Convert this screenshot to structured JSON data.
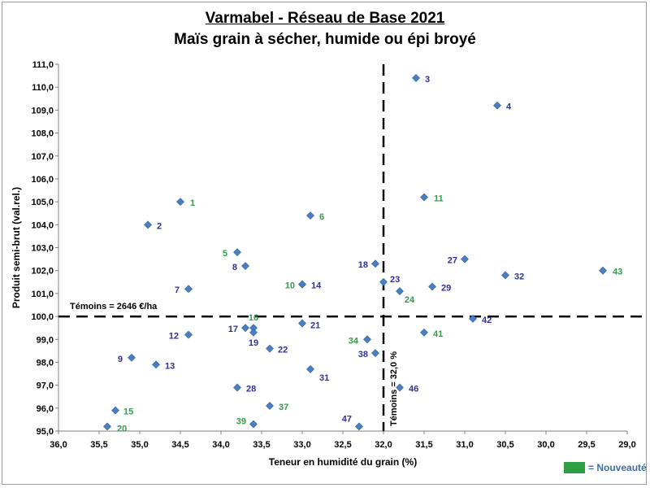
{
  "titles": {
    "line1": "Varmabel - Réseau de Base 2021",
    "line2": "Maïs grain à sécher, humide ou épi broyé"
  },
  "legend": {
    "label": "= Nouveauté",
    "color": "#2e9e45"
  },
  "colors": {
    "marker": "#4a7fc1",
    "label_standard": "#2e3192",
    "label_new": "#2e9e45",
    "refline": "#000000"
  },
  "chart_data": {
    "type": "scatter",
    "xlabel": "Teneur en humidité du grain (%)",
    "ylabel": "Produit semi-brut (val.rel.)",
    "xlim": [
      36.0,
      29.0
    ],
    "x_reversed": true,
    "ylim": [
      95.0,
      111.0
    ],
    "x_ticks": [
      "36,0",
      "35,5",
      "35,0",
      "34,5",
      "34,0",
      "33,5",
      "33,0",
      "32,5",
      "32,0",
      "31,5",
      "31,0",
      "30,5",
      "30,0",
      "29,5",
      "29,0"
    ],
    "y_ticks": [
      "95,0",
      "96,0",
      "97,0",
      "98,0",
      "99,0",
      "100,0",
      "101,0",
      "102,0",
      "103,0",
      "104,0",
      "105,0",
      "106,0",
      "107,0",
      "108,0",
      "109,0",
      "110,0",
      "111,0"
    ],
    "grid": false,
    "reference_lines": {
      "horizontal": {
        "y": 100.0,
        "label": "Témoins = 2646 €/ha"
      },
      "vertical": {
        "x": 32.0,
        "label": "Témoins = 32,0 %"
      }
    },
    "points": [
      {
        "id": "1",
        "x": 34.5,
        "y": 105.0,
        "new": true
      },
      {
        "id": "2",
        "x": 34.9,
        "y": 104.0,
        "new": false
      },
      {
        "id": "3",
        "x": 31.6,
        "y": 110.4,
        "new": false
      },
      {
        "id": "4",
        "x": 30.6,
        "y": 109.2,
        "new": false
      },
      {
        "id": "5",
        "x": 33.8,
        "y": 102.8,
        "new": true
      },
      {
        "id": "6",
        "x": 32.9,
        "y": 104.4,
        "new": true
      },
      {
        "id": "7",
        "x": 34.4,
        "y": 101.2,
        "new": false
      },
      {
        "id": "8",
        "x": 33.7,
        "y": 102.2,
        "new": false
      },
      {
        "id": "9",
        "x": 35.1,
        "y": 98.2,
        "new": false
      },
      {
        "id": "10",
        "x": 33.0,
        "y": 101.4,
        "new": true
      },
      {
        "id": "11",
        "x": 31.5,
        "y": 105.2,
        "new": true
      },
      {
        "id": "12",
        "x": 34.4,
        "y": 99.2,
        "new": false
      },
      {
        "id": "13",
        "x": 34.8,
        "y": 97.9,
        "new": false
      },
      {
        "id": "14",
        "x": 33.0,
        "y": 101.4,
        "new": false
      },
      {
        "id": "15",
        "x": 35.3,
        "y": 95.9,
        "new": true
      },
      {
        "id": "16",
        "x": 33.6,
        "y": 99.5,
        "new": true
      },
      {
        "id": "17",
        "x": 33.7,
        "y": 99.5,
        "new": false
      },
      {
        "id": "18",
        "x": 32.1,
        "y": 102.3,
        "new": false
      },
      {
        "id": "19",
        "x": 33.6,
        "y": 99.3,
        "new": false
      },
      {
        "id": "20",
        "x": 35.4,
        "y": 95.2,
        "new": true
      },
      {
        "id": "21",
        "x": 33.0,
        "y": 99.7,
        "new": false
      },
      {
        "id": "22",
        "x": 33.4,
        "y": 98.6,
        "new": false
      },
      {
        "id": "23",
        "x": 32.0,
        "y": 101.5,
        "new": false
      },
      {
        "id": "24",
        "x": 31.8,
        "y": 101.1,
        "new": true
      },
      {
        "id": "27",
        "x": 31.0,
        "y": 102.5,
        "new": false
      },
      {
        "id": "28",
        "x": 33.8,
        "y": 96.9,
        "new": false
      },
      {
        "id": "29",
        "x": 31.4,
        "y": 101.3,
        "new": false
      },
      {
        "id": "31",
        "x": 32.9,
        "y": 97.7,
        "new": false
      },
      {
        "id": "32",
        "x": 30.5,
        "y": 101.8,
        "new": false
      },
      {
        "id": "34",
        "x": 32.2,
        "y": 99.0,
        "new": true
      },
      {
        "id": "37",
        "x": 33.4,
        "y": 96.1,
        "new": true
      },
      {
        "id": "38",
        "x": 32.1,
        "y": 98.4,
        "new": false
      },
      {
        "id": "39",
        "x": 33.6,
        "y": 95.3,
        "new": true
      },
      {
        "id": "41",
        "x": 31.5,
        "y": 99.3,
        "new": true
      },
      {
        "id": "42",
        "x": 30.9,
        "y": 99.9,
        "new": false
      },
      {
        "id": "43",
        "x": 29.3,
        "y": 102.0,
        "new": true
      },
      {
        "id": "46",
        "x": 31.8,
        "y": 96.9,
        "new": false
      },
      {
        "id": "47",
        "x": 32.3,
        "y": 95.2,
        "new": false
      }
    ]
  }
}
